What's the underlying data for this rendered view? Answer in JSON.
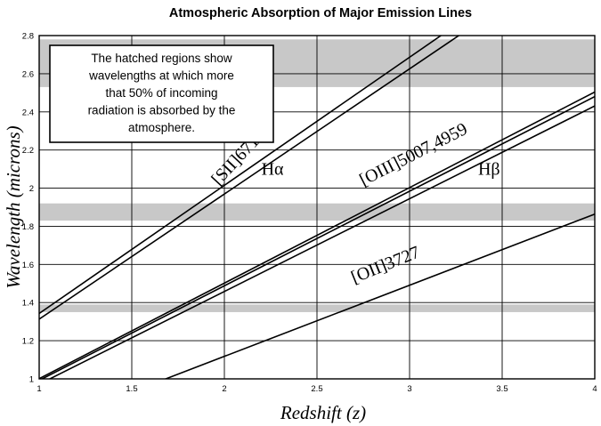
{
  "chart_data": {
    "type": "line",
    "title": "Atmospheric Absorption of Major Emission Lines",
    "xlabel": "Redshift (z)",
    "ylabel": "Wavelength (microns)",
    "xlim": [
      1,
      4
    ],
    "ylim": [
      1,
      2.8
    ],
    "x_ticks": [
      "1",
      "1.5",
      "2",
      "2.5",
      "3",
      "3.5",
      "4"
    ],
    "y_ticks": [
      "1",
      "1.2",
      "1.4",
      "1.6",
      "1.8",
      "2",
      "2.2",
      "2.4",
      "2.6",
      "2.8"
    ],
    "grid": true,
    "absorption_bands": [
      {
        "y_min": 1.35,
        "y_max": 1.39
      },
      {
        "y_min": 1.83,
        "y_max": 1.92
      },
      {
        "y_min": 2.53,
        "y_max": 2.78
      }
    ],
    "series": [
      {
        "name": "[SII]6716",
        "rest_wavelength_microns": 0.6716,
        "x": [
          1,
          4
        ],
        "y": [
          1.343,
          3.358
        ]
      },
      {
        "name": "Hα",
        "rest_wavelength_microns": 0.6563,
        "x": [
          1,
          4
        ],
        "y": [
          1.313,
          3.282
        ]
      },
      {
        "name": "[OIII]5007",
        "rest_wavelength_microns": 0.5007,
        "x": [
          1,
          4
        ],
        "y": [
          1.001,
          2.504
        ]
      },
      {
        "name": "[OIII]4959",
        "rest_wavelength_microns": 0.4959,
        "x": [
          1,
          4
        ],
        "y": [
          0.992,
          2.48
        ]
      },
      {
        "name": "Hβ",
        "rest_wavelength_microns": 0.4861,
        "x": [
          1,
          4
        ],
        "y": [
          0.972,
          2.431
        ]
      },
      {
        "name": "[OII]3727",
        "rest_wavelength_microns": 0.3727,
        "x": [
          1,
          4
        ],
        "y": [
          0.745,
          1.864
        ]
      }
    ],
    "line_labels": [
      {
        "text": "[SII]6716",
        "x": 1.97,
        "y": 2.01,
        "angle": -47
      },
      {
        "text": "Hα",
        "x": 2.2,
        "y": 2.07,
        "angle": 0
      },
      {
        "text": "[OIII]5007,4959",
        "x": 2.75,
        "y": 2.01,
        "angle": -27
      },
      {
        "text": "Hβ",
        "x": 3.37,
        "y": 2.07,
        "angle": 0
      },
      {
        "text": "[OII]3727",
        "x": 2.7,
        "y": 1.5,
        "angle": -22
      }
    ],
    "annotation": "The hatched regions show wavelengths at which more that 50% of incoming radiation is absorbed by the atmosphere.",
    "annotation_lines": [
      "The hatched regions show",
      "wavelengths at which more",
      "that 50% of incoming",
      "radiation is absorbed by the",
      "atmosphere."
    ]
  },
  "colors": {
    "band": "#c8c8c8",
    "line": "#000000",
    "grid": "#000000",
    "background": "#ffffff"
  }
}
